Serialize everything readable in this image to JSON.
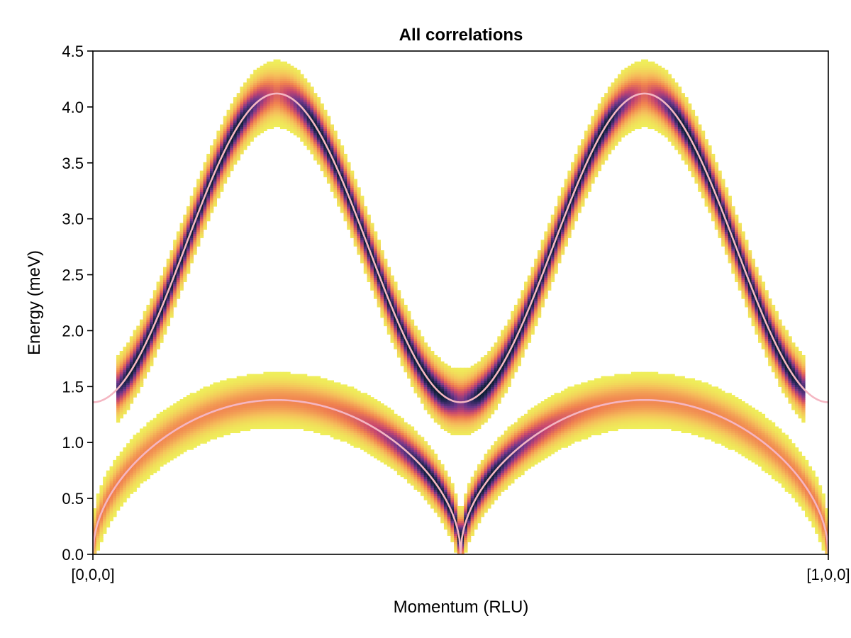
{
  "chart_data": {
    "type": "heatmap",
    "title": "All correlations",
    "xlabel": "Momentum (RLU)",
    "ylabel": "Energy (meV)",
    "x_ticks": [
      "[0,0,0]",
      "[1,0,0]"
    ],
    "x_range": [
      0,
      1
    ],
    "ylim": [
      0,
      4.5
    ],
    "y_ticks": [
      "0.0",
      "0.5",
      "1.0",
      "1.5",
      "2.0",
      "2.5",
      "3.0",
      "3.5",
      "4.0",
      "4.5"
    ],
    "grid": false,
    "colormap": "magma (reversed): yellow = low intensity, dark = high intensity",
    "bands": [
      {
        "name": "upper branch",
        "dispersion": "E(q) = 2.74 - 1.38*cos(4*pi*q)",
        "q_min_visible": 0.03,
        "q_max_visible": 0.97,
        "energy_at": {
          "q=0": 1.36,
          "q=0.25": 4.12,
          "q=0.5": 1.36,
          "q=0.75": 4.12,
          "q=1": 1.36
        }
      },
      {
        "name": "lower branch",
        "dispersion": "E(q) = 1.38*|sin(2*pi*q)|^0.5 (approx.)",
        "energy_at": {
          "q=0": 0.0,
          "q=0.25": 1.38,
          "q=0.5": 0.0,
          "q=0.75": 1.38,
          "q=1": 0.0
        }
      }
    ],
    "line_color": "#f4b6c2",
    "colors": {
      "low": "#eef55a",
      "mid": "#f08a50",
      "high": "#5a3c8c",
      "peak": "#0a1e2e"
    }
  }
}
